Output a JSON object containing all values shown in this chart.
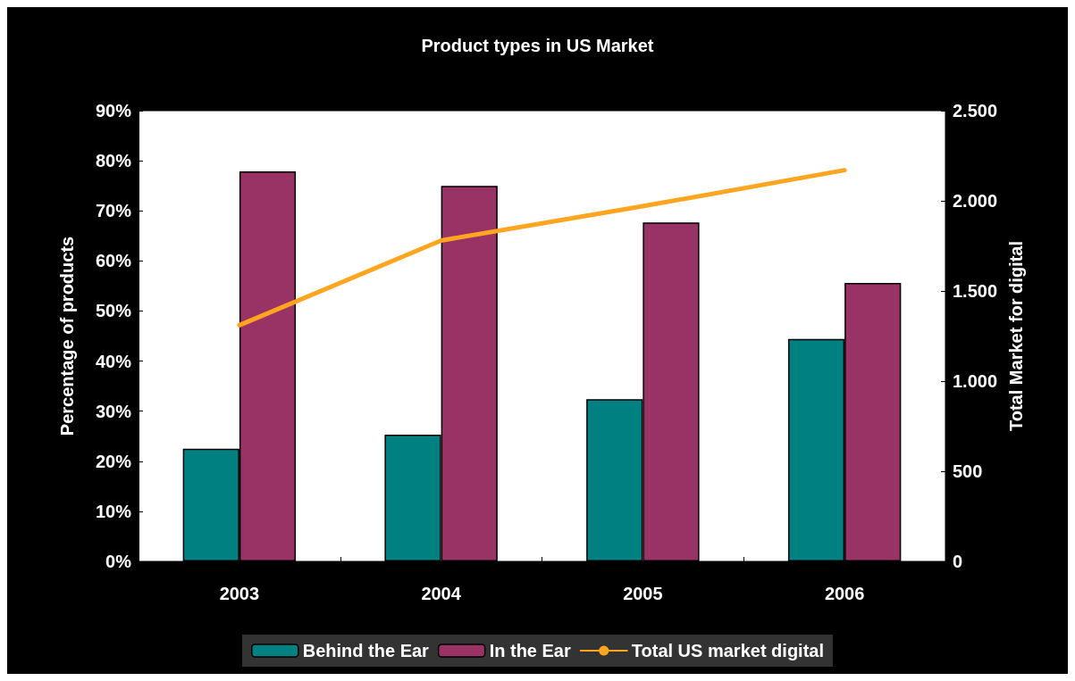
{
  "chart_data": {
    "type": "bar",
    "title": "Product types in US Market",
    "ylabel": "Percentage of products",
    "y2label": "Total Market for digital",
    "categories": [
      "2003",
      "2004",
      "2005",
      "2006"
    ],
    "series": [
      {
        "name": "Behind the Ear",
        "color": "#008080",
        "values": [
          22.5,
          25.3,
          32.4,
          44.4
        ]
      },
      {
        "name": "In the Ear",
        "color": "#993366",
        "values": [
          77.9,
          75.0,
          67.7,
          55.6
        ]
      },
      {
        "name": "Total US market digital",
        "type": "line",
        "axis": "y2",
        "color": "#ffa51f",
        "values": [
          1310,
          1780,
          1970,
          2170
        ]
      }
    ],
    "ylim": [
      0,
      90
    ],
    "yticks": [
      {
        "value": 0,
        "label": "0%"
      },
      {
        "value": 10,
        "label": "10%"
      },
      {
        "value": 20,
        "label": "20%"
      },
      {
        "value": 30,
        "label": "30%"
      },
      {
        "value": 40,
        "label": "40%"
      },
      {
        "value": 50,
        "label": "50%"
      },
      {
        "value": 60,
        "label": "60%"
      },
      {
        "value": 70,
        "label": "70%"
      },
      {
        "value": 80,
        "label": "80%"
      },
      {
        "value": 90,
        "label": "90%"
      }
    ],
    "y2lim": [
      0,
      2500
    ],
    "y2ticks": [
      0,
      500,
      {
        "value": 1000,
        "label": "1.000"
      },
      {
        "value": 1500,
        "label": "1.500"
      },
      {
        "value": 2000,
        "label": "2.000"
      },
      {
        "value": 2500,
        "label": "2.500"
      }
    ],
    "grid": false,
    "legend": "bottom",
    "marker": "none"
  }
}
